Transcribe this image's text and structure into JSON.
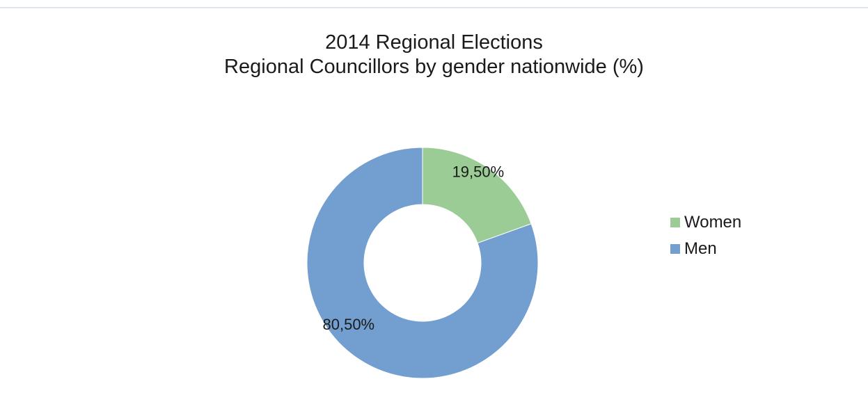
{
  "chart_data": {
    "type": "pie",
    "variant": "donut",
    "title": "2014 Regional Elections",
    "subtitle": "Regional Councillors by gender nationwide (%)",
    "slices": [
      {
        "name": "Women",
        "value": 19.5,
        "label": "19,50%",
        "color": "#9bcc95"
      },
      {
        "name": "Men",
        "value": 80.5,
        "label": "80,50%",
        "color": "#729fcf"
      }
    ],
    "legend_position": "right",
    "grid": false
  }
}
